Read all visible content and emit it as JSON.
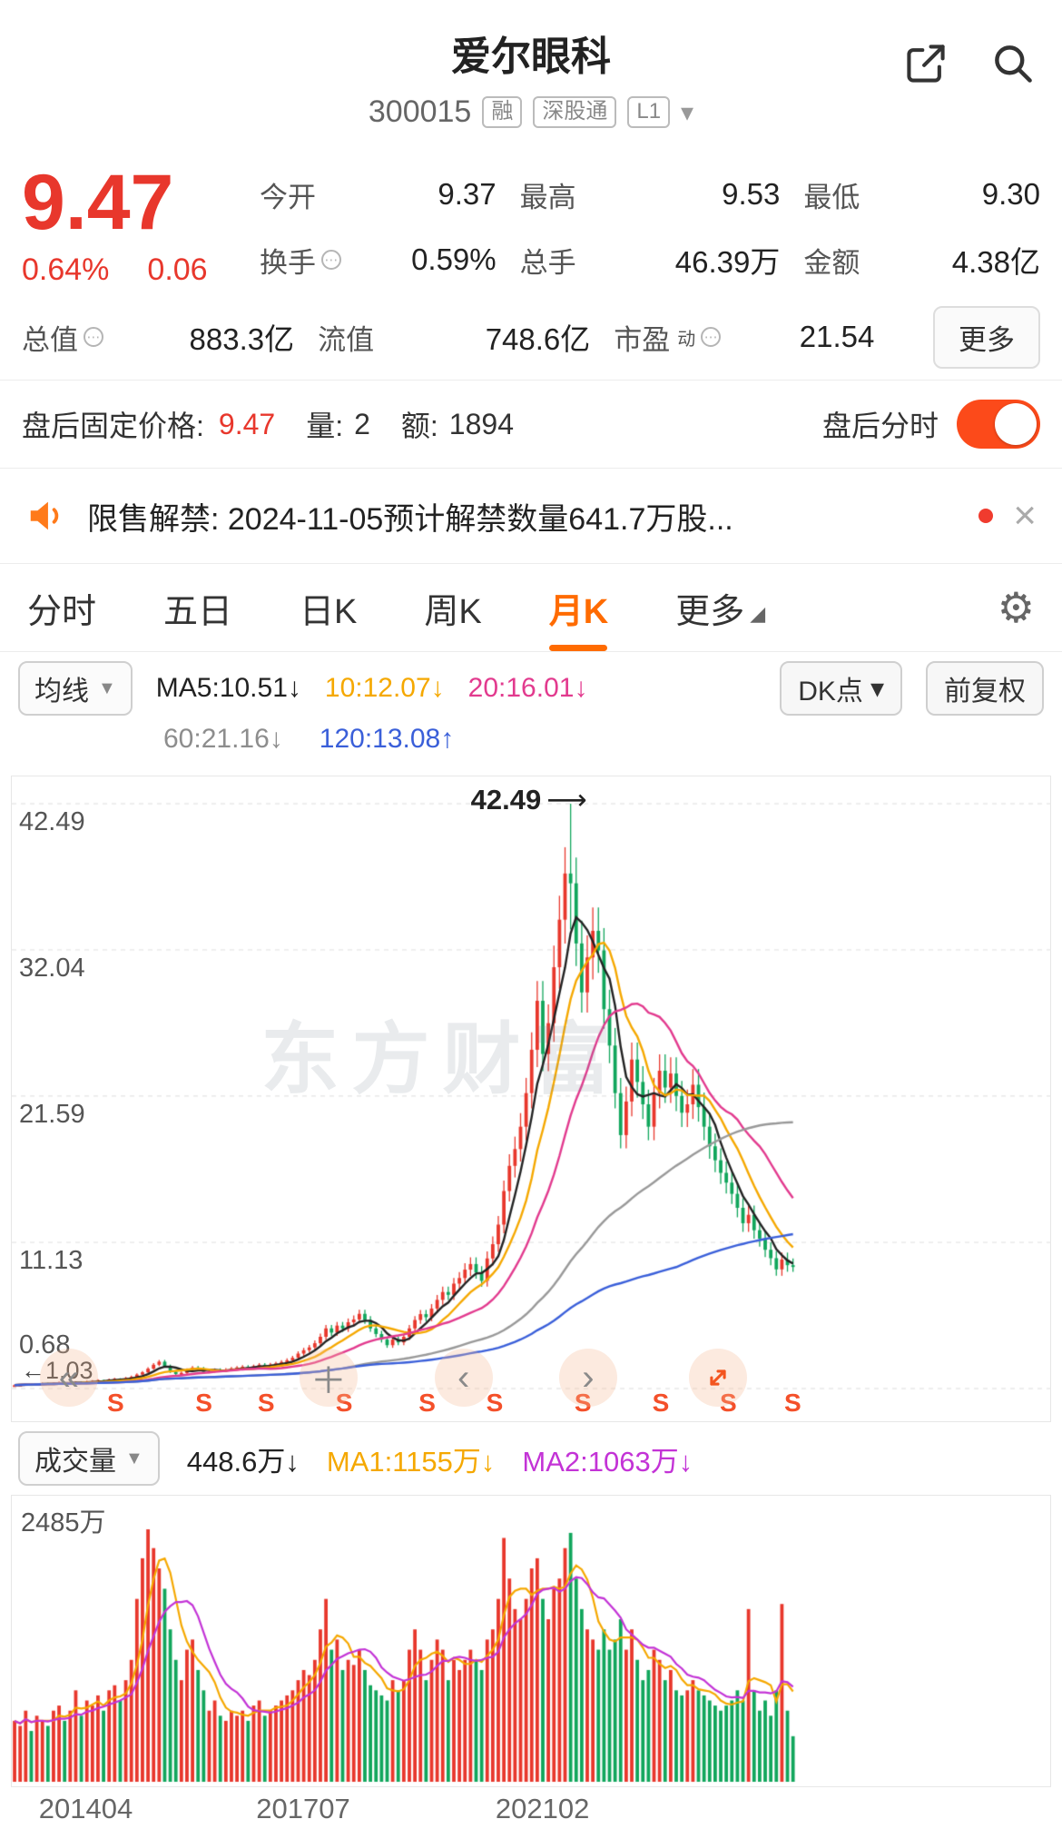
{
  "header": {
    "title": "爱尔眼科",
    "code": "300015",
    "badges": [
      "融",
      "深股通",
      "L1"
    ]
  },
  "quote": {
    "price": "9.47",
    "change_pct": "0.64%",
    "change_amt": "0.06",
    "r1": [
      {
        "l": "今开",
        "v": "9.37"
      },
      {
        "l": "最高",
        "v": "9.53"
      },
      {
        "l": "最低",
        "v": "9.30"
      }
    ],
    "r2": [
      {
        "l": "换手",
        "v": "0.59%"
      },
      {
        "l": "总手",
        "v": "46.39万"
      },
      {
        "l": "金额",
        "v": "4.38亿"
      }
    ],
    "r3": [
      {
        "l": "总值",
        "v": "883.3亿"
      },
      {
        "l": "流值",
        "v": "748.6亿"
      },
      {
        "l": "市盈",
        "sup": "动",
        "v": "21.54"
      }
    ],
    "more": "更多"
  },
  "afterhours": {
    "label": "盘后固定价格:",
    "price": "9.47",
    "qty_label": "量:",
    "qty": "2",
    "amt_label": "额:",
    "amt": "1894",
    "toggle_label": "盘后分时"
  },
  "notice": {
    "text": "限售解禁: 2024-11-05预计解禁数量641.7万股..."
  },
  "tabs": {
    "items": [
      "分时",
      "五日",
      "日K",
      "周K",
      "月K",
      "更多"
    ],
    "active": "月K"
  },
  "legend": {
    "selector": "均线",
    "ma5": "MA5:10.51↓",
    "ma10": "10:12.07↓",
    "ma20": "20:16.01↓",
    "ma60": "60:21.16↓",
    "ma120": "120:13.08↑",
    "dk": "DK点",
    "fq": "前复权"
  },
  "vol_legend": {
    "selector": "成交量",
    "current": "448.6万↓",
    "ma1": "MA1:1155万↓",
    "ma2": "MA2:1063万↓"
  },
  "chart_data": {
    "type": "candlestick+volume",
    "title": "爱尔眼科 月K线",
    "watermark": "东方财富",
    "peak_label": "42.49",
    "left_marker": "←1.03",
    "s_text": "S",
    "y_labels": [
      {
        "text": "42.49",
        "p": 42.49
      },
      {
        "text": "32.04",
        "p": 32.04
      },
      {
        "text": "21.59",
        "p": 21.59
      },
      {
        "text": "11.13",
        "p": 11.13
      },
      {
        "text": "0.68",
        "p": 0.68
      }
    ],
    "x_labels": [
      {
        "text": "201404",
        "x": 0.072
      },
      {
        "text": "201707",
        "x": 0.281
      },
      {
        "text": "202102",
        "x": 0.511
      }
    ],
    "s_markers": [
      0.1,
      0.185,
      0.245,
      0.32,
      0.4,
      0.465,
      0.55,
      0.625,
      0.69,
      0.752
    ],
    "vol_max_label": "2485万",
    "vol_max": 2485,
    "data_width": 0.755,
    "colors": {
      "up": "#e8372c",
      "down": "#11a65c",
      "ma5": "#222222",
      "ma10": "#f5a800",
      "ma20": "#e23a8e",
      "ma60": "#999999",
      "ma120": "#3a5fd9",
      "vol_ma1": "#f5a800",
      "vol_ma2": "#c333d6",
      "grid": "#dedede"
    },
    "candles": [
      [
        0.9,
        0.97,
        0.86,
        0.92
      ],
      [
        0.92,
        1.0,
        0.88,
        0.95
      ],
      [
        0.95,
        1.05,
        0.91,
        1.0
      ],
      [
        1.0,
        1.03,
        0.93,
        0.98
      ],
      [
        0.98,
        1.07,
        0.94,
        1.02
      ],
      [
        1.02,
        1.11,
        0.98,
        1.06
      ],
      [
        1.06,
        1.09,
        0.99,
        1.04
      ],
      [
        1.04,
        1.13,
        1.0,
        1.08
      ],
      [
        1.08,
        1.18,
        1.04,
        1.12
      ],
      [
        1.12,
        1.15,
        1.03,
        1.08
      ],
      [
        1.08,
        1.16,
        1.0,
        1.1
      ],
      [
        1.1,
        1.2,
        1.06,
        1.14
      ],
      [
        1.14,
        1.17,
        1.05,
        1.1
      ],
      [
        1.1,
        1.24,
        1.06,
        1.18
      ],
      [
        1.18,
        1.28,
        1.13,
        1.22
      ],
      [
        1.22,
        1.34,
        1.17,
        1.28
      ],
      [
        1.28,
        1.31,
        1.19,
        1.25
      ],
      [
        1.25,
        1.39,
        1.2,
        1.32
      ],
      [
        1.32,
        1.45,
        1.27,
        1.38
      ],
      [
        1.38,
        1.42,
        1.28,
        1.35
      ],
      [
        1.35,
        1.51,
        1.3,
        1.44
      ],
      [
        1.44,
        1.6,
        1.38,
        1.52
      ],
      [
        1.52,
        1.76,
        1.46,
        1.68
      ],
      [
        1.68,
        1.93,
        1.61,
        1.84
      ],
      [
        1.84,
        2.21,
        1.77,
        2.1
      ],
      [
        2.1,
        2.5,
        2.02,
        2.38
      ],
      [
        2.38,
        2.73,
        2.28,
        2.6
      ],
      [
        2.6,
        2.73,
        2.17,
        2.28
      ],
      [
        2.28,
        2.39,
        1.79,
        1.88
      ],
      [
        1.88,
        1.97,
        1.55,
        1.72
      ],
      [
        1.72,
        1.89,
        1.63,
        1.8
      ],
      [
        1.8,
        2.12,
        1.71,
        2.02
      ],
      [
        2.02,
        2.29,
        1.92,
        2.18
      ],
      [
        2.18,
        2.29,
        2.01,
        2.12
      ],
      [
        2.12,
        2.23,
        1.77,
        1.86
      ],
      [
        1.86,
        2.02,
        1.77,
        1.92
      ],
      [
        1.92,
        2.12,
        1.82,
        2.02
      ],
      [
        2.02,
        2.12,
        1.88,
        1.98
      ],
      [
        1.98,
        2.14,
        1.88,
        2.04
      ],
      [
        2.04,
        2.23,
        1.94,
        2.12
      ],
      [
        2.12,
        2.29,
        2.01,
        2.18
      ],
      [
        2.18,
        2.35,
        2.07,
        2.24
      ],
      [
        2.24,
        2.35,
        2.07,
        2.18
      ],
      [
        2.18,
        2.39,
        2.07,
        2.28
      ],
      [
        2.28,
        2.5,
        2.17,
        2.38
      ],
      [
        2.38,
        2.5,
        2.2,
        2.32
      ],
      [
        2.32,
        2.52,
        2.2,
        2.4
      ],
      [
        2.4,
        2.6,
        2.28,
        2.48
      ],
      [
        2.48,
        2.71,
        2.36,
        2.58
      ],
      [
        2.58,
        2.84,
        2.45,
        2.7
      ],
      [
        2.7,
        3.02,
        2.57,
        2.88
      ],
      [
        2.88,
        3.34,
        2.74,
        3.18
      ],
      [
        3.18,
        3.59,
        3.02,
        3.42
      ],
      [
        3.42,
        3.8,
        3.25,
        3.62
      ],
      [
        3.62,
        4.12,
        3.44,
        3.92
      ],
      [
        3.92,
        4.6,
        3.72,
        4.38
      ],
      [
        4.38,
        5.23,
        4.16,
        4.98
      ],
      [
        4.98,
        5.23,
        4.45,
        4.68
      ],
      [
        4.68,
        5.44,
        4.45,
        5.18
      ],
      [
        5.18,
        5.44,
        4.73,
        4.98
      ],
      [
        4.98,
        5.69,
        4.73,
        5.42
      ],
      [
        5.42,
        5.9,
        5.15,
        5.62
      ],
      [
        5.62,
        6.32,
        5.34,
        6.02
      ],
      [
        6.02,
        6.32,
        5.3,
        5.58
      ],
      [
        5.58,
        5.86,
        4.73,
        4.98
      ],
      [
        4.98,
        5.23,
        4.35,
        4.58
      ],
      [
        4.58,
        4.81,
        3.97,
        4.18
      ],
      [
        4.18,
        4.39,
        3.59,
        3.78
      ],
      [
        3.78,
        4.39,
        3.59,
        4.18
      ],
      [
        4.18,
        4.39,
        3.78,
        3.98
      ],
      [
        3.98,
        4.6,
        3.78,
        4.38
      ],
      [
        4.38,
        5.23,
        4.16,
        4.98
      ],
      [
        4.98,
        5.86,
        4.73,
        5.58
      ],
      [
        5.58,
        6.3,
        5.3,
        6.0
      ],
      [
        6.0,
        6.3,
        5.49,
        5.78
      ],
      [
        5.78,
        6.72,
        5.49,
        6.4
      ],
      [
        6.4,
        7.37,
        6.08,
        7.02
      ],
      [
        7.02,
        7.96,
        6.67,
        7.58
      ],
      [
        7.58,
        7.96,
        7.01,
        7.38
      ],
      [
        7.38,
        8.59,
        7.01,
        8.18
      ],
      [
        8.18,
        9.01,
        7.77,
        8.58
      ],
      [
        8.58,
        9.64,
        8.15,
        9.18
      ],
      [
        9.18,
        10.06,
        8.72,
        9.58
      ],
      [
        9.58,
        10.06,
        8.53,
        8.98
      ],
      [
        8.98,
        9.43,
        7.96,
        8.38
      ],
      [
        8.38,
        10.48,
        7.96,
        9.98
      ],
      [
        9.98,
        11.55,
        9.48,
        11.0
      ],
      [
        11.0,
        13.02,
        10.45,
        12.4
      ],
      [
        12.4,
        15.54,
        11.78,
        14.8
      ],
      [
        14.8,
        17.43,
        14.06,
        16.6
      ],
      [
        16.6,
        18.69,
        15.77,
        17.8
      ],
      [
        17.8,
        20.37,
        16.91,
        19.4
      ],
      [
        19.4,
        22.89,
        18.43,
        21.8
      ],
      [
        21.8,
        26.15,
        20.71,
        24.9
      ],
      [
        24.9,
        29.82,
        23.66,
        28.4
      ],
      [
        28.4,
        29.82,
        23.37,
        24.6
      ],
      [
        24.6,
        28.14,
        23.37,
        26.8
      ],
      [
        26.8,
        32.34,
        25.46,
        30.8
      ],
      [
        30.8,
        35.91,
        29.26,
        34.2
      ],
      [
        34.2,
        39.38,
        32.49,
        37.5
      ],
      [
        37.5,
        42.49,
        33.5,
        36.8
      ],
      [
        36.8,
        38.64,
        30.88,
        32.5
      ],
      [
        32.5,
        34.13,
        27.55,
        29.0
      ],
      [
        29.0,
        33.08,
        27.55,
        31.5
      ],
      [
        31.5,
        35.07,
        29.93,
        33.4
      ],
      [
        33.4,
        35.07,
        30.4,
        32.0
      ],
      [
        32.0,
        33.6,
        26.41,
        27.8
      ],
      [
        27.8,
        29.19,
        23.94,
        25.2
      ],
      [
        25.2,
        26.46,
        20.71,
        21.8
      ],
      [
        21.8,
        22.89,
        17.86,
        18.8
      ],
      [
        18.8,
        22.26,
        17.86,
        21.2
      ],
      [
        21.2,
        25.41,
        20.14,
        24.2
      ],
      [
        24.2,
        25.41,
        21.47,
        22.6
      ],
      [
        22.6,
        23.73,
        19.95,
        21.0
      ],
      [
        21.0,
        22.05,
        18.43,
        19.4
      ],
      [
        19.4,
        22.89,
        18.43,
        21.8
      ],
      [
        21.8,
        24.57,
        20.71,
        23.4
      ],
      [
        23.4,
        24.57,
        21.09,
        22.2
      ],
      [
        22.2,
        24.36,
        21.09,
        23.2
      ],
      [
        23.2,
        24.36,
        20.52,
        21.6
      ],
      [
        21.6,
        22.68,
        19.38,
        20.4
      ],
      [
        20.4,
        22.05,
        19.38,
        21.0
      ],
      [
        21.0,
        23.52,
        19.95,
        22.4
      ],
      [
        22.4,
        23.52,
        19.76,
        20.8
      ],
      [
        20.8,
        21.84,
        18.43,
        19.4
      ],
      [
        19.4,
        20.37,
        17.1,
        18.0
      ],
      [
        18.0,
        18.9,
        16.15,
        17.0
      ],
      [
        17.0,
        17.85,
        15.3,
        16.1
      ],
      [
        16.1,
        16.91,
        14.63,
        15.4
      ],
      [
        15.4,
        16.17,
        13.87,
        14.6
      ],
      [
        14.6,
        15.33,
        12.92,
        13.6
      ],
      [
        13.6,
        14.28,
        11.88,
        12.5
      ],
      [
        12.5,
        13.76,
        11.88,
        13.1
      ],
      [
        13.1,
        13.76,
        11.4,
        12.0
      ],
      [
        12.0,
        12.6,
        10.83,
        11.4
      ],
      [
        11.4,
        11.97,
        10.07,
        10.6
      ],
      [
        10.6,
        11.13,
        9.5,
        10.0
      ],
      [
        10.0,
        10.5,
        8.74,
        9.2
      ],
      [
        9.2,
        10.4,
        8.74,
        9.9
      ],
      [
        9.9,
        10.4,
        9.03,
        9.5
      ],
      [
        9.5,
        9.98,
        9.03,
        9.47
      ]
    ],
    "volumes": [
      600,
      550,
      700,
      500,
      650,
      600,
      550,
      700,
      750,
      600,
      700,
      900,
      650,
      800,
      750,
      850,
      700,
      900,
      950,
      800,
      1000,
      1200,
      1800,
      2200,
      2485,
      2300,
      2100,
      1900,
      1500,
      1200,
      1000,
      1300,
      1400,
      1100,
      900,
      700,
      800,
      650,
      600,
      700,
      650,
      700,
      600,
      750,
      800,
      650,
      700,
      750,
      800,
      850,
      900,
      1000,
      1100,
      1050,
      1200,
      1500,
      1800,
      1300,
      1400,
      1100,
      1200,
      1150,
      1300,
      1100,
      950,
      900,
      850,
      800,
      1000,
      900,
      1000,
      1300,
      1500,
      1300,
      1000,
      1200,
      1400,
      1300,
      1000,
      1200,
      1100,
      1200,
      1300,
      1200,
      1100,
      1400,
      1500,
      1800,
      2400,
      2000,
      1700,
      1600,
      1800,
      2100,
      2200,
      1800,
      1600,
      1900,
      2000,
      2300,
      2450,
      2000,
      1700,
      1500,
      1400,
      1300,
      1500,
      1300,
      1400,
      1600,
      1300,
      1500,
      1200,
      1000,
      1100,
      1300,
      1200,
      1000,
      1100,
      900,
      850,
      900,
      1000,
      900,
      850,
      800,
      750,
      700,
      750,
      800,
      900,
      800,
      1700,
      900,
      700,
      800,
      650,
      900,
      1750,
      700,
      448.6
    ]
  }
}
